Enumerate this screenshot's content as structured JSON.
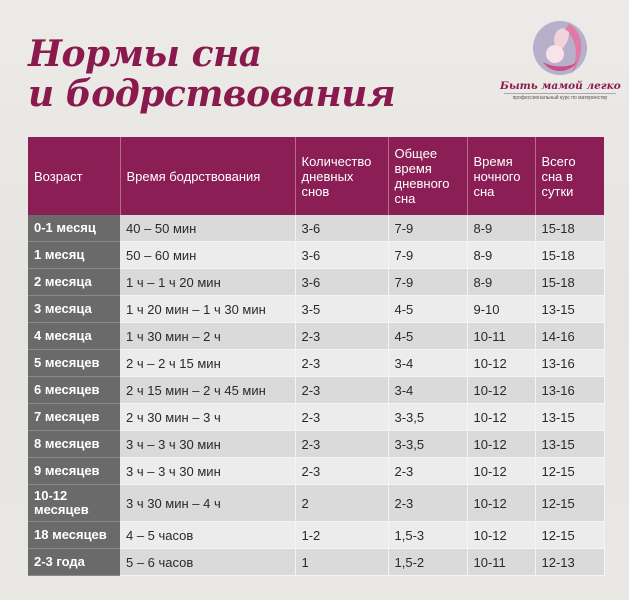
{
  "title": {
    "line1": "Нормы сна",
    "line2": "и бодрствования"
  },
  "logo": {
    "name": "Быть мамой легко",
    "tagline": "профессиональный курс по материнству"
  },
  "colors": {
    "header": "#8b1f55",
    "title": "#8a1a4e",
    "age_column": "#6a6a6a"
  },
  "table": {
    "headers": [
      "Возраст",
      "Время бодрствования",
      "Количество дневных снов",
      "Общее время дневного сна",
      "Время ночного сна",
      "Всего сна в сутки"
    ],
    "rows": [
      [
        "0-1 месяц",
        "40 – 50 мин",
        "3-6",
        "7-9",
        "8-9",
        "15-18"
      ],
      [
        "1 месяц",
        "50 – 60 мин",
        "3-6",
        "7-9",
        "8-9",
        "15-18"
      ],
      [
        "2 месяца",
        "1 ч – 1 ч 20 мин",
        "3-6",
        "7-9",
        "8-9",
        "15-18"
      ],
      [
        "3 месяца",
        "1 ч 20 мин – 1 ч 30 мин",
        "3-5",
        "4-5",
        "9-10",
        "13-15"
      ],
      [
        "4 месяца",
        "1 ч 30 мин – 2 ч",
        "2-3",
        "4-5",
        "10-11",
        "14-16"
      ],
      [
        "5 месяцев",
        "2 ч – 2 ч 15 мин",
        "2-3",
        "3-4",
        "10-12",
        "13-16"
      ],
      [
        "6 месяцев",
        "2 ч 15 мин – 2 ч 45 мин",
        "2-3",
        "3-4",
        "10-12",
        "13-16"
      ],
      [
        "7 месяцев",
        "2 ч 30 мин – 3 ч",
        "2-3",
        "3-3,5",
        "10-12",
        "13-15"
      ],
      [
        "8 месяцев",
        "3 ч – 3 ч 30 мин",
        "2-3",
        "3-3,5",
        "10-12",
        "13-15"
      ],
      [
        "9 месяцев",
        "3 ч – 3 ч 30 мин",
        "2-3",
        "2-3",
        "10-12",
        "12-15"
      ],
      [
        "10-12 месяцев",
        "3 ч 30 мин – 4 ч",
        "2",
        "2-3",
        "10-12",
        "12-15"
      ],
      [
        "18 месяцев",
        "4 – 5 часов",
        "1-2",
        "1,5-3",
        "10-12",
        "12-15"
      ],
      [
        "2-3 года",
        "5 – 6 часов",
        "1",
        "1,5-2",
        "10-11",
        "12-13"
      ]
    ]
  }
}
